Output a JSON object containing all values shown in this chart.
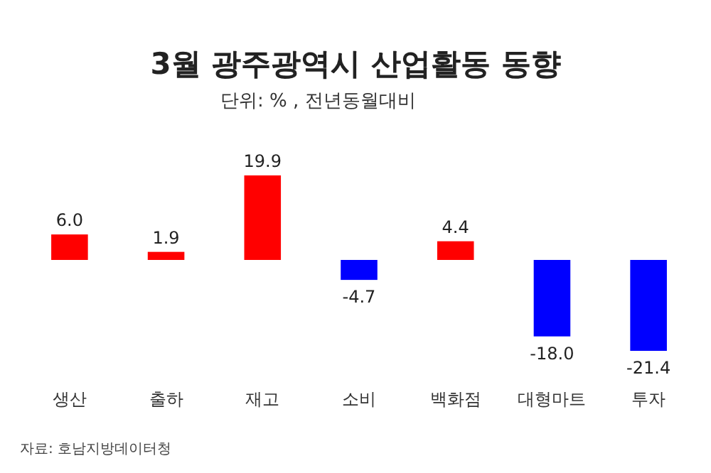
{
  "chart_data": {
    "type": "bar",
    "title": "3월 광주광역시 산업활동 동향",
    "subtitle": "단위: % , 전년동월대비",
    "categories": [
      "생산",
      "출하",
      "재고",
      "소비",
      "백화점",
      "대형마트",
      "투자"
    ],
    "values": [
      6.0,
      1.9,
      19.9,
      -4.7,
      4.4,
      -18.0,
      -21.4
    ],
    "colors": [
      "#ff0000",
      "#ff0000",
      "#ff0000",
      "#0000ff",
      "#ff0000",
      "#0000ff",
      "#0000ff"
    ],
    "value_labels": [
      "6.0",
      "1.9",
      "19.9",
      "-4.7",
      "4.4",
      "-18.0",
      "-21.4"
    ],
    "annotations": [
      "자료: 호남지방데이터청"
    ]
  }
}
